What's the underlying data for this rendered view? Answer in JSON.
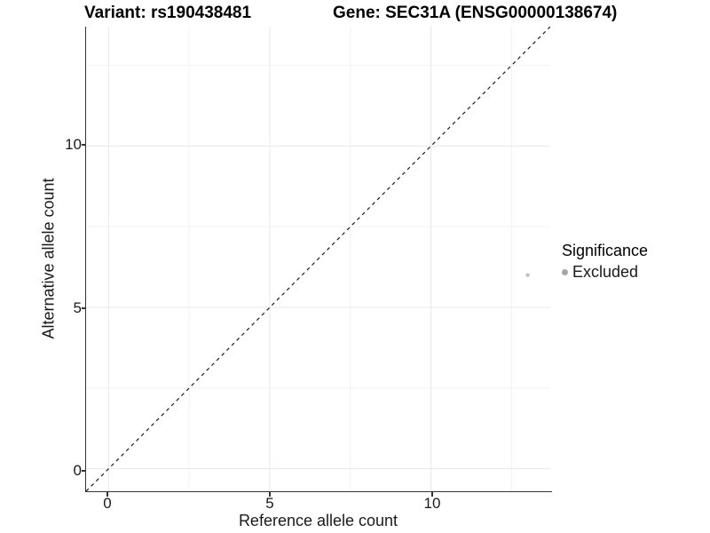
{
  "title": {
    "variant": "Variant: rs190438481",
    "gene": "Gene: SEC31A (ENSG00000138674)"
  },
  "axes": {
    "x": {
      "label": "Reference allele count",
      "tick_labels": [
        "0",
        "5",
        "10"
      ]
    },
    "y": {
      "label": "Alternative allele count",
      "tick_labels": [
        "0",
        "5",
        "10"
      ]
    }
  },
  "legend": {
    "title": "Significance",
    "items": [
      {
        "label": "Excluded",
        "key_color": "#a6a6a6"
      }
    ]
  },
  "colors": {
    "background": "#ffffff",
    "axis_line": "#333333",
    "grid_major": "#e8e8e8",
    "grid_minor": "#f2f2f2",
    "identity_line": "#1a1a1a",
    "point": "#c2c2c2"
  },
  "chart_data": {
    "type": "scatter",
    "title": "Variant: rs190438481    Gene: SEC31A (ENSG00000138674)",
    "xlabel": "Reference allele count",
    "ylabel": "Alternative allele count",
    "xlim": [
      -0.7,
      13.7
    ],
    "ylim": [
      -0.7,
      13.7
    ],
    "x_ticks": [
      0,
      5,
      10
    ],
    "y_ticks": [
      0,
      5,
      10
    ],
    "x_minor_ticks": [
      2.5,
      7.5,
      12.5
    ],
    "y_minor_ticks": [
      2.5,
      7.5,
      12.5
    ],
    "grid": "major and minor horizontal+vertical, very light gray, white background",
    "legend_position": "right-middle",
    "series": [
      {
        "name": "Excluded",
        "color": "#c2c2c2",
        "points": [
          {
            "x": 13,
            "y": 6
          }
        ]
      }
    ],
    "reference_line": {
      "type": "identity y=x",
      "style": "dashed",
      "color": "#1a1a1a"
    }
  }
}
